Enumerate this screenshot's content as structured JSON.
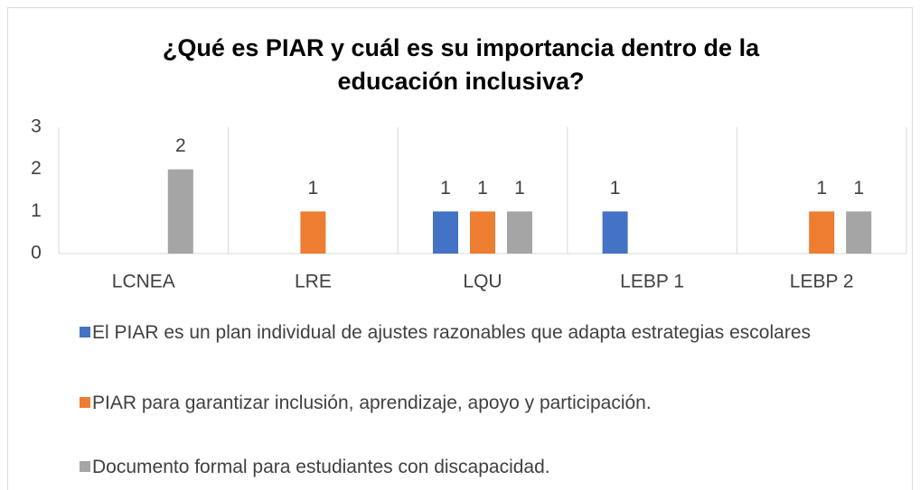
{
  "chart_data": {
    "type": "bar",
    "title": "¿Qué es PIAR y cuál es su importancia dentro de la educación inclusiva?",
    "categories": [
      "LCNEA",
      "LRE",
      "LQU",
      "LEBP 1",
      "LEBP 2"
    ],
    "series": [
      {
        "name": "El PIAR es un plan individual de ajustes razonables que adapta estrategias escolares",
        "color": "#4472c4",
        "values": [
          null,
          null,
          1,
          1,
          null
        ]
      },
      {
        "name": "PIAR para garantizar inclusión, aprendizaje, apoyo y participación.",
        "color": "#ed7d31",
        "values": [
          null,
          1,
          1,
          null,
          1
        ]
      },
      {
        "name": "Documento formal para estudiantes con discapacidad.",
        "color": "#a5a5a5",
        "values": [
          2,
          null,
          1,
          null,
          1
        ]
      }
    ],
    "ylim": [
      0,
      3
    ],
    "yticks": [
      0,
      1,
      2,
      3
    ],
    "legend": "bottom"
  }
}
